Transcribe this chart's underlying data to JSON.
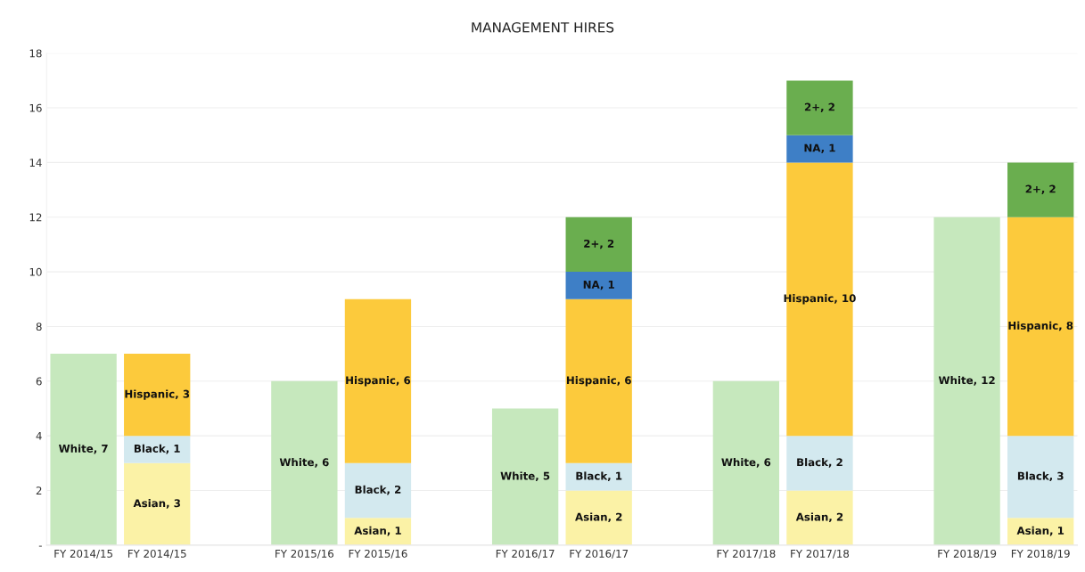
{
  "chart_data": {
    "type": "bar",
    "title": "MANAGEMENT HIRES",
    "stacked": true,
    "categories": [
      "FY 2014/15",
      "FY 2014/15",
      null,
      "FY 2015/16",
      "FY 2015/16",
      null,
      "FY 2016/17",
      "FY 2016/17",
      null,
      "FY 2017/18",
      "FY 2017/18",
      null,
      "FY 2018/19",
      "FY 2018/19"
    ],
    "series": [
      {
        "color": "#c6e8bd",
        "values": [
          7,
          null,
          null,
          6,
          null,
          null,
          5,
          null,
          null,
          6,
          null,
          null,
          12,
          null
        ],
        "value_labels": [
          "White, 7",
          null,
          null,
          "White, 6",
          null,
          null,
          "White, 5",
          null,
          null,
          "White, 6",
          null,
          null,
          "White, 12",
          null
        ]
      },
      {
        "color": "#fbf2a6",
        "values": [
          null,
          3,
          null,
          null,
          1,
          null,
          null,
          2,
          null,
          null,
          2,
          null,
          null,
          1
        ],
        "value_labels": [
          null,
          "Asian, 3",
          null,
          null,
          "Asian, 1",
          null,
          null,
          "Asian, 2",
          null,
          null,
          "Asian, 2",
          null,
          null,
          "Asian, 1"
        ]
      },
      {
        "color": "#d3e9ef",
        "values": [
          null,
          1,
          null,
          null,
          2,
          null,
          null,
          1,
          null,
          null,
          2,
          null,
          null,
          3
        ],
        "value_labels": [
          null,
          "Black, 1",
          null,
          null,
          "Black, 2",
          null,
          null,
          "Black, 1",
          null,
          null,
          "Black, 2",
          null,
          null,
          "Black, 3"
        ]
      },
      {
        "color": "#fcca3c",
        "values": [
          null,
          3,
          null,
          null,
          6,
          null,
          null,
          6,
          null,
          null,
          10,
          null,
          null,
          8
        ],
        "value_labels": [
          null,
          "Hispanic, 3",
          null,
          null,
          "Hispanic, 6",
          null,
          null,
          "Hispanic, 6",
          null,
          null,
          "Hispanic, 10",
          null,
          null,
          "Hispanic, 8"
        ]
      },
      {
        "color": "#3e7fc6",
        "values": [
          null,
          null,
          null,
          null,
          null,
          null,
          null,
          1,
          null,
          null,
          1,
          null,
          null,
          null
        ],
        "value_labels": [
          null,
          null,
          null,
          null,
          null,
          null,
          null,
          "NA, 1",
          null,
          null,
          "NA, 1",
          null,
          null,
          null
        ]
      },
      {
        "color": "#6aae4f",
        "values": [
          null,
          null,
          null,
          null,
          null,
          null,
          null,
          2,
          null,
          null,
          2,
          null,
          null,
          2
        ],
        "value_labels": [
          null,
          null,
          null,
          null,
          null,
          null,
          null,
          "2+, 2",
          null,
          null,
          "2+, 2",
          null,
          null,
          "2+, 2"
        ]
      }
    ],
    "ylim": [
      0,
      18
    ],
    "yticks": [
      {
        "value": 0,
        "label": "-"
      },
      2,
      4,
      6,
      8,
      10,
      12,
      14,
      16,
      18
    ],
    "grid": "y"
  }
}
